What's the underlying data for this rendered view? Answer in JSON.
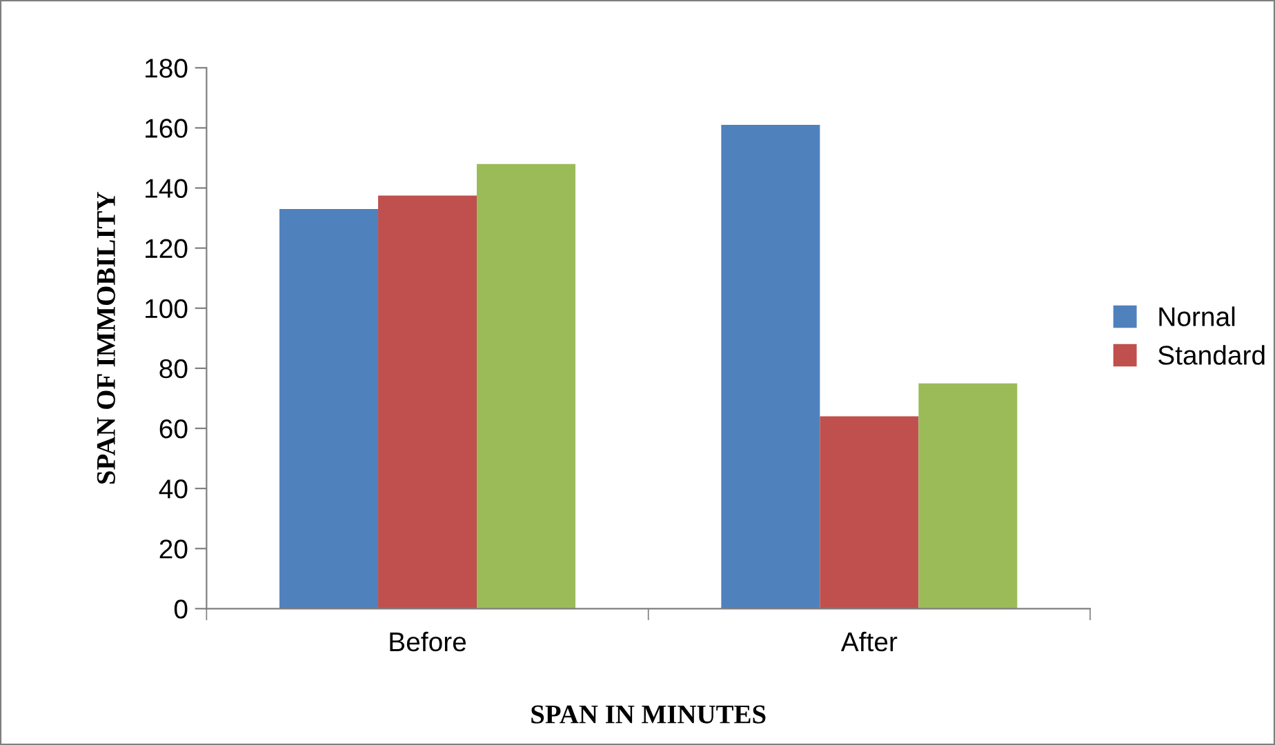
{
  "chart_data": {
    "type": "bar",
    "xlabel": "SPAN IN MINUTES",
    "ylabel": "SPAN OF IMMOBILITY",
    "categories": [
      "Before",
      "After"
    ],
    "series": [
      {
        "name": "Nornal",
        "color": "#4f81bd",
        "values": [
          133,
          161
        ]
      },
      {
        "name": "Standard",
        "color": "#c0504d",
        "values": [
          137.5,
          64
        ]
      },
      {
        "color": "#9bbb59",
        "values": [
          148,
          75
        ]
      }
    ],
    "ylim": [
      0,
      180
    ],
    "yticks": [
      0,
      20,
      40,
      60,
      80,
      100,
      120,
      140,
      160,
      180
    ],
    "grid": false,
    "legend": "right"
  }
}
